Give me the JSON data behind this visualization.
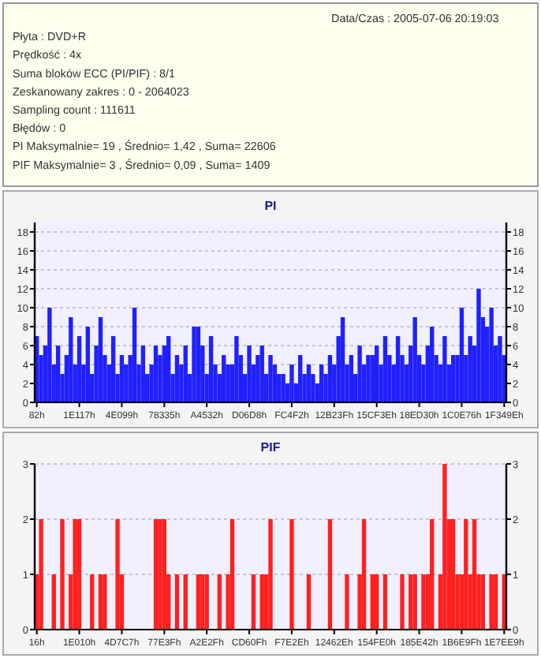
{
  "chart_data": [
    {
      "type": "other",
      "annotations": [
        "Data/Czas : 2005-07-06 20:19:03",
        "Płyta : DVD+R",
        "Prędkość : 4x",
        "Suma bloków ECC (PI/PIF) : 8/1",
        "Zeskanowany zakres : 0 - 2064023",
        "Sampling count : 111611",
        "Błędów : 0",
        "PI Maksymalnie= 19 , Średnio= 1,42 , Suma= 22606",
        "PIF Maksymalnie= 3 , Średnio= 0,09 , Suma= 1409"
      ]
    },
    {
      "type": "bar",
      "title": "PI",
      "color": "#2020ff",
      "categories": [
        "82h",
        null,
        null,
        null,
        null,
        null,
        null,
        null,
        null,
        null,
        "1E117h",
        null,
        null,
        null,
        null,
        null,
        null,
        null,
        null,
        null,
        "4E099h",
        null,
        null,
        null,
        null,
        null,
        null,
        null,
        null,
        null,
        "78335h",
        null,
        null,
        null,
        null,
        null,
        null,
        null,
        null,
        null,
        "A4532h",
        null,
        null,
        null,
        null,
        null,
        null,
        null,
        null,
        null,
        "D06D8h",
        null,
        null,
        null,
        null,
        null,
        null,
        null,
        null,
        null,
        "FC4F2h",
        null,
        null,
        null,
        null,
        null,
        null,
        null,
        null,
        null,
        "12B23Fh",
        null,
        null,
        null,
        null,
        null,
        null,
        null,
        null,
        null,
        "15CF3Eh",
        null,
        null,
        null,
        null,
        null,
        null,
        null,
        null,
        null,
        "18ED30h",
        null,
        null,
        null,
        null,
        null,
        null,
        null,
        null,
        null,
        "1C0E76h",
        null,
        null,
        null,
        null,
        null,
        null,
        null,
        null,
        null,
        "1F349Eh"
      ],
      "values": [
        7,
        5,
        6,
        10,
        4,
        6,
        3,
        5,
        9,
        4,
        7,
        4,
        8,
        3,
        6,
        9,
        5,
        4,
        7,
        3,
        5,
        4,
        5,
        10,
        4,
        6,
        3,
        4,
        6,
        5,
        6,
        7,
        3,
        5,
        4,
        6,
        3,
        8,
        8,
        6,
        3,
        7,
        4,
        3,
        5,
        4,
        4,
        7,
        5,
        3,
        6,
        4,
        5,
        6,
        3,
        5,
        4,
        3,
        3,
        2,
        4,
        2,
        5,
        3,
        4,
        3,
        2,
        4,
        3,
        5,
        4,
        7,
        9,
        4,
        5,
        3,
        6,
        4,
        5,
        5,
        6,
        4,
        7,
        5,
        4,
        7,
        5,
        4,
        6,
        9,
        5,
        4,
        6,
        8,
        5,
        4,
        7,
        4,
        5,
        5,
        10,
        5,
        7,
        6,
        12,
        9,
        8,
        10,
        6,
        7,
        5
      ],
      "ylim": [
        0,
        19
      ],
      "yticks": [
        0,
        2,
        4,
        6,
        8,
        10,
        12,
        14,
        16,
        18
      ],
      "y2lim": [
        0,
        19
      ],
      "y2ticks": [
        0,
        2,
        4,
        6,
        8,
        10,
        12,
        14,
        16,
        18
      ],
      "grid": "y"
    },
    {
      "type": "bar",
      "title": "PIF",
      "color": "#ff2020",
      "categories": [
        "16h",
        null,
        null,
        null,
        null,
        null,
        null,
        null,
        null,
        null,
        "1E010h",
        null,
        null,
        null,
        null,
        null,
        null,
        null,
        null,
        null,
        "4D7C7h",
        null,
        null,
        null,
        null,
        null,
        null,
        null,
        null,
        null,
        "77E3Fh",
        null,
        null,
        null,
        null,
        null,
        null,
        null,
        null,
        null,
        "A2E2Fh",
        null,
        null,
        null,
        null,
        null,
        null,
        null,
        null,
        null,
        "CD60Fh",
        null,
        null,
        null,
        null,
        null,
        null,
        null,
        null,
        null,
        "F7E2Eh",
        null,
        null,
        null,
        null,
        null,
        null,
        null,
        null,
        null,
        "12462Eh",
        null,
        null,
        null,
        null,
        null,
        null,
        null,
        null,
        null,
        "154FE0h",
        null,
        null,
        null,
        null,
        null,
        null,
        null,
        null,
        null,
        "185E42h",
        null,
        null,
        null,
        null,
        null,
        null,
        null,
        null,
        null,
        "1B6E9Fh",
        null,
        null,
        null,
        null,
        null,
        null,
        null,
        null,
        null,
        "1E7EE9h"
      ],
      "values": [
        1,
        2,
        0,
        0,
        1,
        0,
        2,
        0,
        1,
        2,
        2,
        0,
        0,
        1,
        0,
        1,
        1,
        0,
        0,
        2,
        1,
        0,
        0,
        0,
        0,
        0,
        0,
        0,
        2,
        2,
        2,
        1,
        0,
        1,
        0,
        1,
        0,
        0,
        1,
        1,
        1,
        0,
        0,
        1,
        0,
        1,
        2,
        0,
        0,
        0,
        0,
        1,
        0,
        1,
        1,
        2,
        0,
        0,
        0,
        0,
        2,
        0,
        0,
        0,
        1,
        0,
        0,
        0,
        0,
        2,
        0,
        0,
        0,
        1,
        0,
        0,
        1,
        2,
        0,
        1,
        1,
        0,
        1,
        0,
        0,
        0,
        1,
        0,
        1,
        1,
        0,
        1,
        1,
        2,
        0,
        1,
        3,
        2,
        2,
        1,
        1,
        2,
        1,
        2,
        1,
        1,
        0,
        1,
        1,
        0,
        1
      ],
      "ylim": [
        0,
        3
      ],
      "yticks": [
        0,
        1,
        2,
        3
      ],
      "y2lim": [
        0,
        3
      ],
      "y2ticks": [
        0,
        1,
        2,
        3
      ],
      "grid": "y"
    }
  ]
}
